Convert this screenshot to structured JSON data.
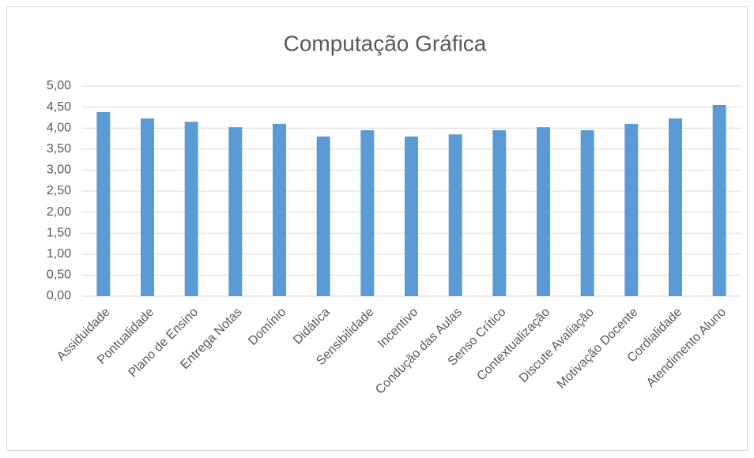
{
  "chart_data": {
    "type": "bar",
    "title": "Computação Gráfica",
    "categories": [
      "Assiduidade",
      "Pontualidade",
      "Plano de Ensino",
      "Entrega Notas",
      "Domínio",
      "Didática",
      "Sensibilidade",
      "Incentivo",
      "Condução das Aulas",
      "Senso Crítico",
      "Contextualização",
      "Discute Avaliação",
      "Motivação Docente",
      "Cordialidade",
      "Atendimento Aluno"
    ],
    "values": [
      4.38,
      4.23,
      4.15,
      4.02,
      4.1,
      3.8,
      3.95,
      3.8,
      3.85,
      3.95,
      4.02,
      3.95,
      4.1,
      4.23,
      4.55
    ],
    "color": "#5b9bd5",
    "ylim": [
      0,
      5
    ],
    "yticks": [
      {
        "value": 0,
        "label": "0,00"
      },
      {
        "value": 0.5,
        "label": "0,50"
      },
      {
        "value": 1,
        "label": "1,00"
      },
      {
        "value": 1.5,
        "label": "1,50"
      },
      {
        "value": 2,
        "label": "2,00"
      },
      {
        "value": 2.5,
        "label": "2,50"
      },
      {
        "value": 3,
        "label": "3,00"
      },
      {
        "value": 3.5,
        "label": "3,50"
      },
      {
        "value": 4,
        "label": "4,00"
      },
      {
        "value": 4.5,
        "label": "4,50"
      },
      {
        "value": 5,
        "label": "5,00"
      }
    ],
    "grid": true
  }
}
